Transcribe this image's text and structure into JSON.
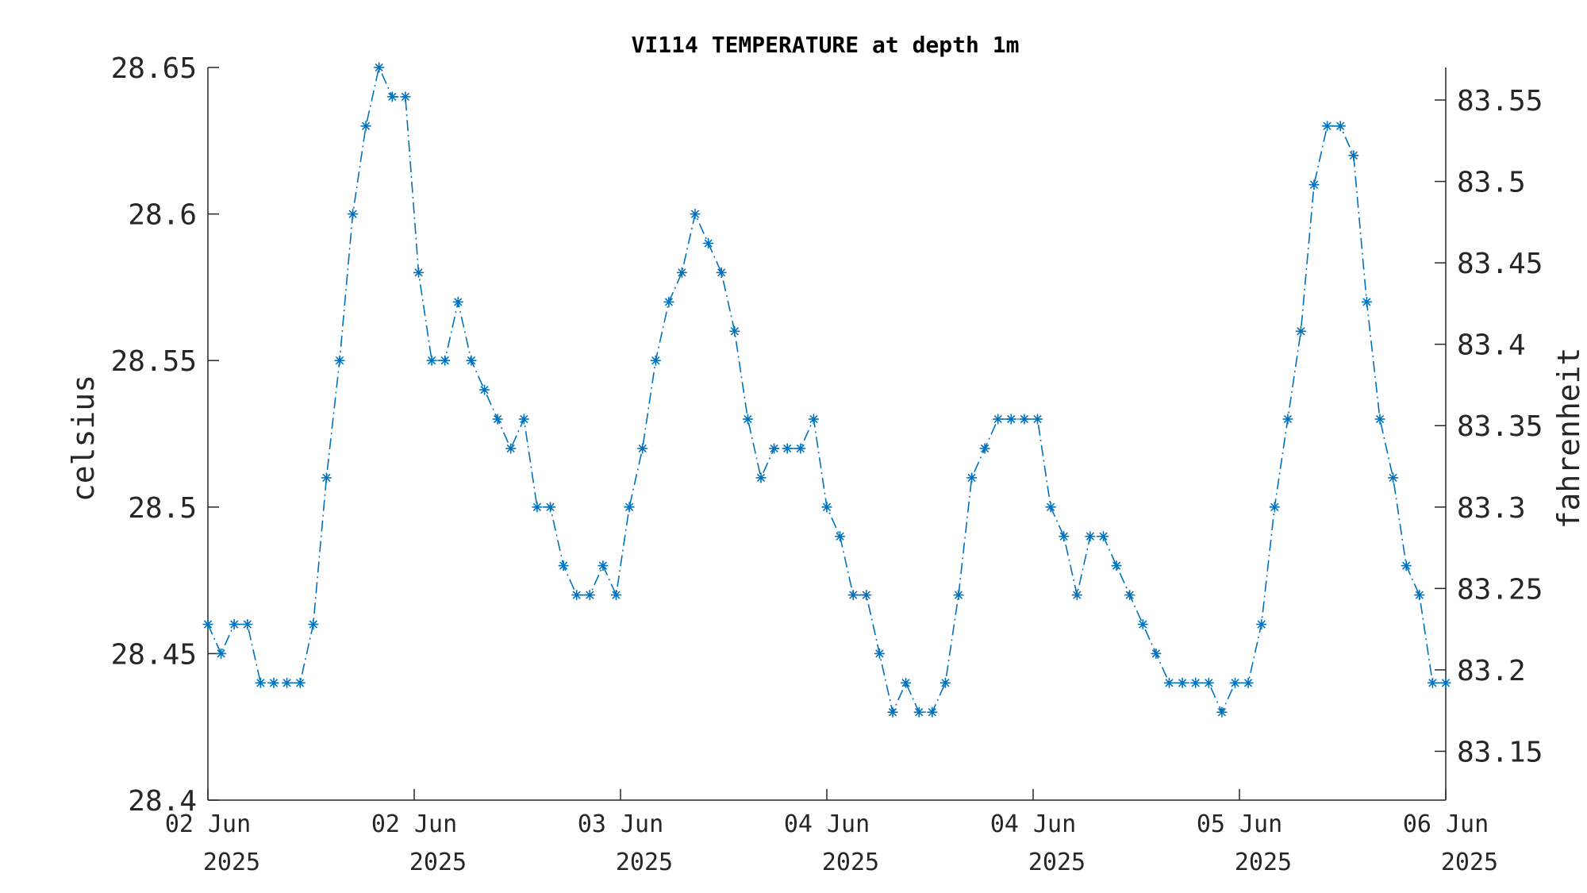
{
  "chart_data": {
    "type": "line",
    "title": "VI114 TEMPERATURE at depth 1m",
    "xlabel": "",
    "ylabel": "celsius",
    "ylabel_right": "fahrenheit",
    "ylim": [
      28.4,
      28.65
    ],
    "ylim_right": [
      83.12,
      83.57
    ],
    "y_ticks": [
      "28.4",
      "28.45",
      "28.5",
      "28.55",
      "28.6",
      "28.65"
    ],
    "y_right_ticks": [
      "83.15",
      "83.2",
      "83.25",
      "83.3",
      "83.35",
      "83.4",
      "83.45",
      "83.5",
      "83.55"
    ],
    "x_ticks": [
      {
        "line1": "02 Jun",
        "line2": "2025"
      },
      {
        "line1": "02 Jun",
        "line2": "2025"
      },
      {
        "line1": "03 Jun",
        "line2": "2025"
      },
      {
        "line1": "04 Jun",
        "line2": "2025"
      },
      {
        "line1": "04 Jun",
        "line2": "2025"
      },
      {
        "line1": "05 Jun",
        "line2": "2025"
      },
      {
        "line1": "06 Jun",
        "line2": "2025"
      }
    ],
    "grid": false,
    "series": [
      {
        "color": "#0072BD",
        "line_style": "dash-dot",
        "marker": "asterisk",
        "values": [
          28.46,
          28.45,
          28.46,
          28.46,
          28.44,
          28.44,
          28.44,
          28.44,
          28.46,
          28.51,
          28.55,
          28.6,
          28.63,
          28.65,
          28.64,
          28.64,
          28.58,
          28.55,
          28.55,
          28.57,
          28.55,
          28.54,
          28.53,
          28.52,
          28.53,
          28.5,
          28.5,
          28.48,
          28.47,
          28.47,
          28.48,
          28.47,
          28.5,
          28.52,
          28.55,
          28.57,
          28.58,
          28.6,
          28.59,
          28.58,
          28.56,
          28.53,
          28.51,
          28.52,
          28.52,
          28.52,
          28.53,
          28.5,
          28.49,
          28.47,
          28.47,
          28.45,
          28.43,
          28.44,
          28.43,
          28.43,
          28.44,
          28.47,
          28.51,
          28.52,
          28.53,
          28.53,
          28.53,
          28.53,
          28.5,
          28.49,
          28.47,
          28.49,
          28.49,
          28.48,
          28.47,
          28.46,
          28.45,
          28.44,
          28.44,
          28.44,
          28.44,
          28.43,
          28.44,
          28.44,
          28.46,
          28.5,
          28.53,
          28.56,
          28.61,
          28.63,
          28.63,
          28.62,
          28.57,
          28.53,
          28.51,
          28.48,
          28.47,
          28.44,
          28.44
        ]
      }
    ]
  }
}
